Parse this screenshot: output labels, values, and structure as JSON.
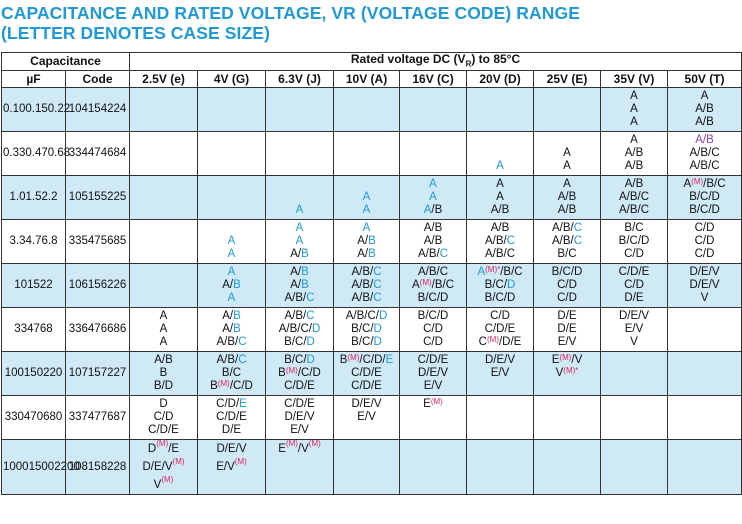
{
  "title_line1": "CAPACITANCE AND RATED VOLTAGE, VR (VOLTAGE CODE) RANGE",
  "title_line2": "(LETTER DENOTES CASE SIZE)",
  "header": {
    "capacitance": "Capacitance",
    "rated_voltage_pre": "Rated voltage DC (V",
    "rated_voltage_sub": "R",
    "rated_voltage_post": ") to 85°C",
    "uf": "µF",
    "code": "Code",
    "voltages": [
      "2.5V (e)",
      "4V (G)",
      "6.3V (J)",
      "10V (A)",
      "16V (C)",
      "20V (D)",
      "25V (E)",
      "35V (V)",
      "50V (T)"
    ]
  },
  "colors": {
    "title": "#1f9ad6",
    "blue": "#1f9ad6",
    "mark": "#e0245e",
    "shade": "#cfe9f7"
  },
  "rows": [
    {
      "uf": [
        "0.10",
        "0.15",
        "0.22"
      ],
      "code": [
        "104",
        "154",
        "224"
      ],
      "shade": true,
      "cells": [
        [],
        [],
        [],
        [],
        [],
        [],
        [],
        [
          [
            {
              "t": "A"
            }
          ],
          [
            {
              "t": "A"
            }
          ],
          [
            {
              "t": "A"
            }
          ]
        ],
        [
          [
            {
              "t": "A"
            }
          ],
          [
            {
              "t": "A/B"
            }
          ],
          [
            {
              "t": "A/B"
            }
          ]
        ]
      ]
    },
    {
      "uf": [
        "0.33",
        "0.47",
        "0.68"
      ],
      "code": [
        "334",
        "474",
        "684"
      ],
      "shade": false,
      "cells": [
        [],
        [],
        [],
        [],
        [],
        [
          [],
          [],
          [
            {
              "t": "A",
              "c": "b"
            }
          ]
        ],
        [
          [],
          [
            {
              "t": "A"
            }
          ],
          [
            {
              "t": "A"
            }
          ]
        ],
        [
          [
            {
              "t": "A"
            }
          ],
          [
            {
              "t": "A/B"
            }
          ],
          [
            {
              "t": "A/B"
            }
          ]
        ],
        [
          [
            {
              "t": "A/B",
              "c": "p"
            }
          ],
          [
            {
              "t": "A/B/C"
            }
          ],
          [
            {
              "t": "A/B/C"
            }
          ]
        ]
      ]
    },
    {
      "uf": [
        "1.0",
        "1.5",
        "2.2"
      ],
      "code": [
        "105",
        "155",
        "225"
      ],
      "shade": true,
      "cells": [
        [],
        [],
        [
          [],
          [],
          [
            {
              "t": "A",
              "c": "b"
            }
          ]
        ],
        [
          [],
          [
            {
              "t": "A",
              "c": "b"
            }
          ],
          [
            {
              "t": "A",
              "c": "b"
            }
          ]
        ],
        [
          [
            {
              "t": "A",
              "c": "b"
            }
          ],
          [
            {
              "t": "A",
              "c": "b"
            }
          ],
          [
            {
              "t": "A",
              "c": "b"
            },
            {
              "t": "/B"
            }
          ]
        ],
        [
          [
            {
              "t": "A"
            }
          ],
          [
            {
              "t": "A"
            }
          ],
          [
            {
              "t": "A/B"
            }
          ]
        ],
        [
          [
            {
              "t": "A"
            }
          ],
          [
            {
              "t": "A/B"
            }
          ],
          [
            {
              "t": "A/B"
            }
          ]
        ],
        [
          [
            {
              "t": "A/B"
            }
          ],
          [
            {
              "t": "A/B/C"
            }
          ],
          [
            {
              "t": "A/B/C"
            }
          ]
        ],
        [
          [
            {
              "t": "A"
            },
            {
              "t": "(M)",
              "c": "m"
            },
            {
              "t": "/B/C"
            }
          ],
          [
            {
              "t": "B/C/D"
            }
          ],
          [
            {
              "t": "B/C/D"
            }
          ]
        ]
      ]
    },
    {
      "uf": [
        "3.3",
        "4.7",
        "6.8"
      ],
      "code": [
        "335",
        "475",
        "685"
      ],
      "shade": false,
      "cells": [
        [],
        [
          [],
          [
            {
              "t": "A",
              "c": "b"
            }
          ],
          [
            {
              "t": "A",
              "c": "b"
            }
          ]
        ],
        [
          [
            {
              "t": "A",
              "c": "b"
            }
          ],
          [
            {
              "t": "A",
              "c": "b"
            }
          ],
          [
            {
              "t": "A/"
            },
            {
              "t": "B",
              "c": "b"
            }
          ]
        ],
        [
          [
            {
              "t": "A",
              "c": "b"
            }
          ],
          [
            {
              "t": "A/"
            },
            {
              "t": "B",
              "c": "b"
            }
          ],
          [
            {
              "t": "A/"
            },
            {
              "t": "B",
              "c": "b"
            }
          ]
        ],
        [
          [
            {
              "t": "A/B"
            }
          ],
          [
            {
              "t": "A/B"
            }
          ],
          [
            {
              "t": "A/B/"
            },
            {
              "t": "C",
              "c": "b"
            }
          ]
        ],
        [
          [
            {
              "t": "A/B"
            }
          ],
          [
            {
              "t": "A/B/"
            },
            {
              "t": "C",
              "c": "b"
            }
          ],
          [
            {
              "t": "A/B/C"
            }
          ]
        ],
        [
          [
            {
              "t": "A/B/"
            },
            {
              "t": "C",
              "c": "b"
            }
          ],
          [
            {
              "t": "A/B/"
            },
            {
              "t": "C",
              "c": "b"
            }
          ],
          [
            {
              "t": "B/C"
            }
          ]
        ],
        [
          [
            {
              "t": "B/C"
            }
          ],
          [
            {
              "t": "B/C/D"
            }
          ],
          [
            {
              "t": "C/D"
            }
          ]
        ],
        [
          [
            {
              "t": "C/D"
            }
          ],
          [
            {
              "t": "C/D"
            }
          ],
          [
            {
              "t": "C/D"
            }
          ]
        ]
      ]
    },
    {
      "uf": [
        "10",
        "15",
        "22"
      ],
      "code": [
        "106",
        "156",
        "226"
      ],
      "shade": true,
      "cells": [
        [],
        [
          [
            {
              "t": "A",
              "c": "b"
            }
          ],
          [
            {
              "t": "A/"
            },
            {
              "t": "B",
              "c": "b"
            }
          ],
          [
            {
              "t": "A",
              "c": "b"
            }
          ]
        ],
        [
          [
            {
              "t": "A/"
            },
            {
              "t": "B",
              "c": "b"
            }
          ],
          [
            {
              "t": "A/"
            },
            {
              "t": "B",
              "c": "b"
            }
          ],
          [
            {
              "t": "A/B/"
            },
            {
              "t": "C",
              "c": "b"
            }
          ]
        ],
        [
          [
            {
              "t": "A/B/"
            },
            {
              "t": "C",
              "c": "b"
            }
          ],
          [
            {
              "t": "A/B/"
            },
            {
              "t": "C",
              "c": "b"
            }
          ],
          [
            {
              "t": "A/B/"
            },
            {
              "t": "C",
              "c": "b"
            }
          ]
        ],
        [
          [
            {
              "t": "A/B/C"
            }
          ],
          [
            {
              "t": "A"
            },
            {
              "t": "(M)",
              "c": "m"
            },
            {
              "t": "/B/C"
            }
          ],
          [
            {
              "t": "B/C/D"
            }
          ]
        ],
        [
          [
            {
              "t": "A",
              "c": "b"
            },
            {
              "t": "(M)*",
              "c": "m"
            },
            {
              "t": "/B/C"
            }
          ],
          [
            {
              "t": "B/C/"
            },
            {
              "t": "D",
              "c": "b"
            }
          ],
          [
            {
              "t": "B/C/D"
            }
          ]
        ],
        [
          [
            {
              "t": "B/C/D"
            }
          ],
          [
            {
              "t": "C/D"
            }
          ],
          [
            {
              "t": "C/D"
            }
          ]
        ],
        [
          [
            {
              "t": "C/D/E"
            }
          ],
          [
            {
              "t": "C/D"
            }
          ],
          [
            {
              "t": "D/E"
            }
          ]
        ],
        [
          [
            {
              "t": "D/E/V"
            }
          ],
          [
            {
              "t": "D/E/V"
            }
          ],
          [
            {
              "t": "V"
            }
          ]
        ]
      ]
    },
    {
      "uf": [
        "33",
        "47",
        "68"
      ],
      "code": [
        "336",
        "476",
        "686"
      ],
      "shade": false,
      "cells": [
        [
          [
            {
              "t": "A"
            }
          ],
          [
            {
              "t": "A"
            }
          ],
          [
            {
              "t": "A"
            }
          ]
        ],
        [
          [
            {
              "t": "A/"
            },
            {
              "t": "B",
              "c": "b"
            }
          ],
          [
            {
              "t": "A/"
            },
            {
              "t": "B",
              "c": "b"
            }
          ],
          [
            {
              "t": "A/B/"
            },
            {
              "t": "C",
              "c": "b"
            }
          ]
        ],
        [
          [
            {
              "t": "A/B/"
            },
            {
              "t": "C",
              "c": "b"
            }
          ],
          [
            {
              "t": "A/B/C/"
            },
            {
              "t": "D",
              "c": "b"
            }
          ],
          [
            {
              "t": "B/C/"
            },
            {
              "t": "D",
              "c": "b"
            }
          ]
        ],
        [
          [
            {
              "t": "A/B/C/"
            },
            {
              "t": "D",
              "c": "b"
            }
          ],
          [
            {
              "t": "B/C/"
            },
            {
              "t": "D",
              "c": "b"
            }
          ],
          [
            {
              "t": "B/C/"
            },
            {
              "t": "D",
              "c": "b"
            }
          ]
        ],
        [
          [
            {
              "t": "B/C/D"
            }
          ],
          [
            {
              "t": "C/D"
            }
          ],
          [
            {
              "t": "C/D"
            }
          ]
        ],
        [
          [
            {
              "t": "C/D"
            }
          ],
          [
            {
              "t": "C/D/E"
            }
          ],
          [
            {
              "t": "C"
            },
            {
              "t": "(M)",
              "c": "m"
            },
            {
              "t": "/D/E"
            }
          ]
        ],
        [
          [
            {
              "t": "D/E"
            }
          ],
          [
            {
              "t": "D/E"
            }
          ],
          [
            {
              "t": "E/V"
            }
          ]
        ],
        [
          [
            {
              "t": "D/E/V"
            }
          ],
          [
            {
              "t": "E/V"
            }
          ],
          [
            {
              "t": "V"
            }
          ]
        ],
        []
      ]
    },
    {
      "uf": [
        "100",
        "150",
        "220"
      ],
      "code": [
        "107",
        "157",
        "227"
      ],
      "shade": true,
      "cells": [
        [
          [
            {
              "t": "A/B"
            }
          ],
          [
            {
              "t": "B"
            }
          ],
          [
            {
              "t": "B/D"
            }
          ]
        ],
        [
          [
            {
              "t": "A/B/"
            },
            {
              "t": "C",
              "c": "b"
            }
          ],
          [
            {
              "t": "B/C"
            }
          ],
          [
            {
              "t": "B"
            },
            {
              "t": "(M)",
              "c": "m"
            },
            {
              "t": "/C/D"
            }
          ]
        ],
        [
          [
            {
              "t": "B/C/"
            },
            {
              "t": "D",
              "c": "b"
            }
          ],
          [
            {
              "t": "B"
            },
            {
              "t": "(M)",
              "c": "m"
            },
            {
              "t": "/C/D"
            }
          ],
          [
            {
              "t": "C/D/E"
            }
          ]
        ],
        [
          [
            {
              "t": "B"
            },
            {
              "t": "(M)",
              "c": "m"
            },
            {
              "t": "/C/D/"
            },
            {
              "t": "E",
              "c": "b"
            }
          ],
          [
            {
              "t": "C/D/E"
            }
          ],
          [
            {
              "t": "C/D/E"
            }
          ]
        ],
        [
          [
            {
              "t": "C/D/E"
            }
          ],
          [
            {
              "t": "D/E/V"
            }
          ],
          [
            {
              "t": "E/V"
            }
          ]
        ],
        [
          [
            {
              "t": "D/E/V"
            }
          ],
          [
            {
              "t": "E/V"
            }
          ],
          []
        ],
        [
          [
            {
              "t": "E"
            },
            {
              "t": "(M)",
              "c": "m"
            },
            {
              "t": "/V"
            }
          ],
          [
            {
              "t": "V"
            },
            {
              "t": "(M)*",
              "c": "m"
            }
          ],
          []
        ],
        [],
        []
      ]
    },
    {
      "uf": [
        "330",
        "470",
        "680"
      ],
      "code": [
        "337",
        "477",
        "687"
      ],
      "shade": false,
      "cells": [
        [
          [
            {
              "t": "D"
            }
          ],
          [
            {
              "t": "C/D"
            }
          ],
          [
            {
              "t": "C/D/E"
            }
          ]
        ],
        [
          [
            {
              "t": "C/D/"
            },
            {
              "t": "E",
              "c": "b"
            }
          ],
          [
            {
              "t": "C/D/E"
            }
          ],
          [
            {
              "t": "D/E"
            }
          ]
        ],
        [
          [
            {
              "t": "C/D/E"
            }
          ],
          [
            {
              "t": "D/E/V"
            }
          ],
          [
            {
              "t": "E/V"
            }
          ]
        ],
        [
          [
            {
              "t": "D/E/V"
            }
          ],
          [
            {
              "t": "E/V"
            }
          ],
          []
        ],
        [
          [
            {
              "t": "E"
            },
            {
              "t": "(M)",
              "c": "m"
            }
          ],
          [],
          []
        ],
        [],
        [],
        [],
        []
      ]
    },
    {
      "uf": [
        "1000",
        "1500",
        "2200"
      ],
      "code": [
        "108",
        "158",
        "228"
      ],
      "shade": true,
      "cells": [
        [
          [
            {
              "t": "D"
            },
            {
              "t": "(M)",
              "c": "m"
            },
            {
              "t": "/E"
            }
          ],
          [
            {
              "t": "D/E/V"
            },
            {
              "t": "(M)",
              "c": "m"
            }
          ],
          [
            {
              "t": "V"
            },
            {
              "t": "(M)",
              "c": "m"
            }
          ]
        ],
        [
          [
            {
              "t": "D/E/V"
            }
          ],
          [
            {
              "t": "E/V"
            },
            {
              "t": "(M)",
              "c": "m"
            }
          ],
          []
        ],
        [
          [
            {
              "t": "E"
            },
            {
              "t": "(M)",
              "c": "m"
            },
            {
              "t": "/V"
            },
            {
              "t": "(M)",
              "c": "m"
            }
          ],
          [],
          []
        ],
        [],
        [],
        [],
        [],
        [],
        []
      ]
    }
  ]
}
